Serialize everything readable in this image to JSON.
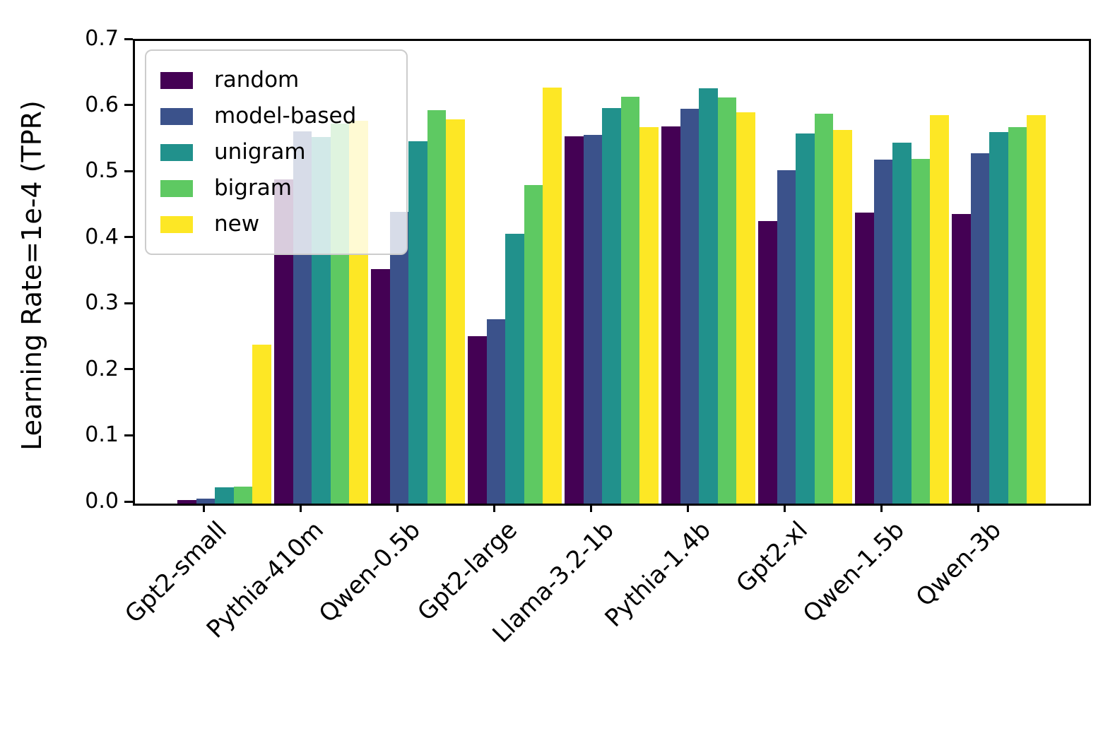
{
  "chart_data": {
    "type": "bar",
    "title": "",
    "ylabel": "Learning Rate=1e-4 (TPR)",
    "xlabel": "",
    "ylim": [
      0.0,
      0.7
    ],
    "yticks": [
      0.0,
      0.1,
      0.2,
      0.3,
      0.4,
      0.5,
      0.6,
      0.7
    ],
    "grid": false,
    "legend_position": "upper-left",
    "legend_bg_alpha": 0.8,
    "categories": [
      "Gpt2-small",
      "Pythia-410m",
      "Qwen-0.5b",
      "Gpt2-large",
      "Llama-3.2-1b",
      "Pythia-1.4b",
      "Gpt2-xl",
      "Qwen-1.5b",
      "Qwen-3b"
    ],
    "series": [
      {
        "name": "random",
        "color": "#440154",
        "values": [
          0.005,
          0.491,
          0.355,
          0.253,
          0.556,
          0.571,
          0.428,
          0.44,
          0.438
        ]
      },
      {
        "name": "model-based",
        "color": "#3b528b",
        "values": [
          0.008,
          0.563,
          0.441,
          0.279,
          0.558,
          0.597,
          0.504,
          0.52,
          0.53
        ]
      },
      {
        "name": "unigram",
        "color": "#21918c",
        "values": [
          0.025,
          0.555,
          0.548,
          0.408,
          0.598,
          0.628,
          0.56,
          0.546,
          0.562
        ]
      },
      {
        "name": "bigram",
        "color": "#5ec962",
        "values": [
          0.026,
          0.575,
          0.595,
          0.482,
          0.616,
          0.614,
          0.59,
          0.522,
          0.57
        ]
      },
      {
        "name": "new",
        "color": "#fde725",
        "values": [
          0.24,
          0.579,
          0.581,
          0.63,
          0.57,
          0.592,
          0.565,
          0.588,
          0.588
        ]
      }
    ]
  }
}
